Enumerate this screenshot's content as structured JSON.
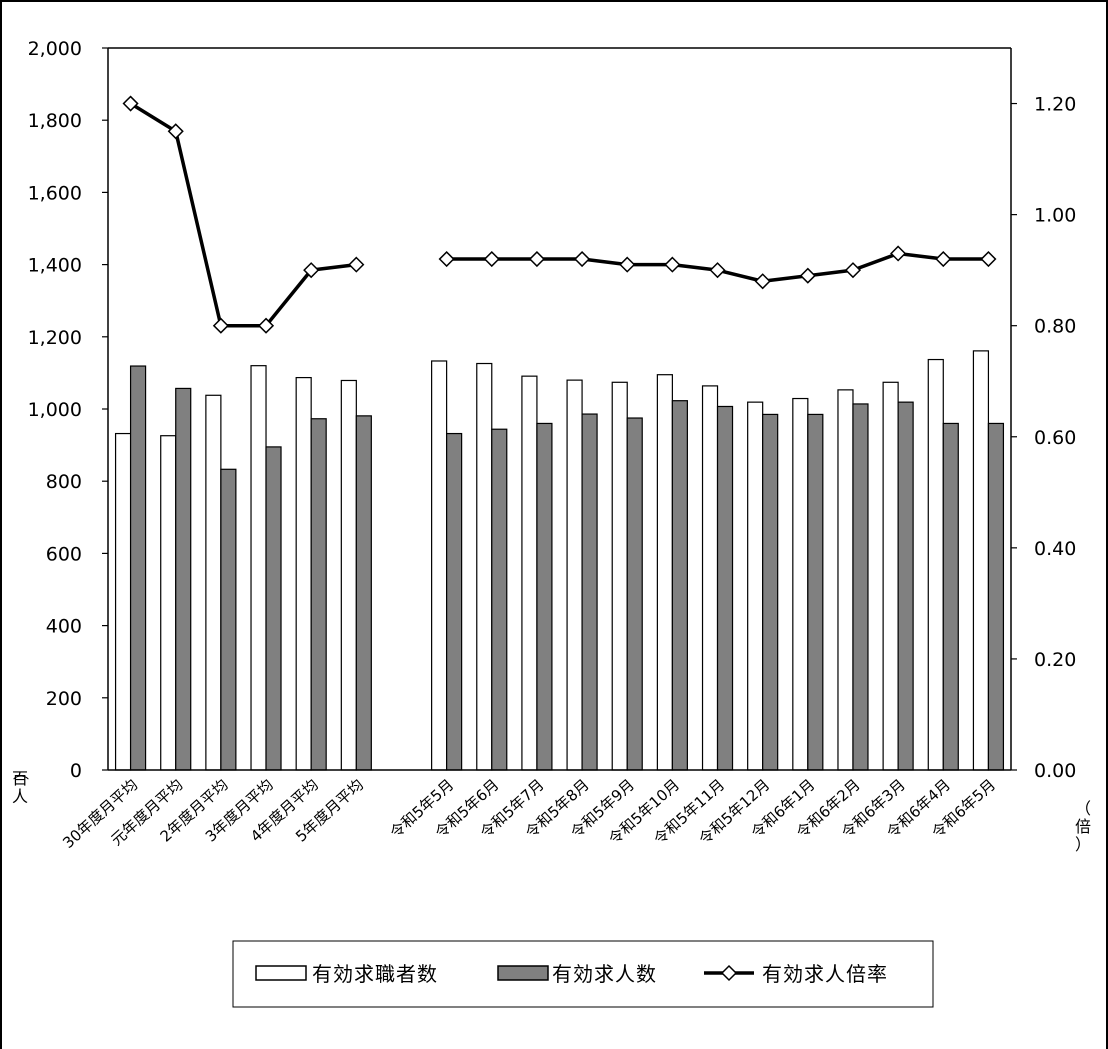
{
  "chart_data": {
    "type": "bar",
    "categories": [
      "30年度月平均",
      "元年度月平均",
      "2年度月平均",
      "3年度月平均",
      "4年度月平均",
      "5年度月平均",
      "",
      "令和5年5月",
      "令和5年6月",
      "令和5年7月",
      "令和5年8月",
      "令和5年9月",
      "令和5年10月",
      "令和5年11月",
      "令和5年12月",
      "令和6年1月",
      "令和6年2月",
      "令和6年3月",
      "令和6年4月",
      "令和6年5月"
    ],
    "series": [
      {
        "name": "有効求職者数",
        "kind": "bar",
        "axis": "left",
        "color": "#ffffff",
        "values": [
          932,
          926,
          1038,
          1120,
          1087,
          1079,
          null,
          1133,
          1126,
          1091,
          1080,
          1074,
          1095,
          1064,
          1019,
          1029,
          1053,
          1074,
          1137,
          1161
        ]
      },
      {
        "name": "有効求人数",
        "kind": "bar",
        "axis": "left",
        "color": "#808080",
        "values": [
          1119,
          1057,
          833,
          895,
          973,
          981,
          null,
          932,
          944,
          960,
          986,
          975,
          1023,
          1007,
          985,
          985,
          1014,
          1019,
          960,
          960
        ]
      },
      {
        "name": "有効求人倍率",
        "kind": "line",
        "axis": "right",
        "color": "#000000",
        "values": [
          1.2,
          1.15,
          0.8,
          0.8,
          0.9,
          0.91,
          null,
          0.92,
          0.92,
          0.92,
          0.92,
          0.91,
          0.91,
          0.9,
          0.88,
          0.89,
          0.9,
          0.93,
          0.92,
          0.92
        ]
      }
    ],
    "ylim": [
      0,
      2000
    ],
    "y2lim": [
      0,
      1.3
    ],
    "yticks": [
      "0",
      "200",
      "400",
      "600",
      "800",
      "1,000",
      "1,200",
      "1,400",
      "1,600",
      "1,800",
      "2,000"
    ],
    "y2ticks": [
      "0.00",
      "0.20",
      "0.40",
      "0.60",
      "0.80",
      "1.00",
      "1.20"
    ],
    "ylabel": "（百人）",
    "y2label": "（倍）",
    "legend_position": "bottom",
    "grid": false
  }
}
